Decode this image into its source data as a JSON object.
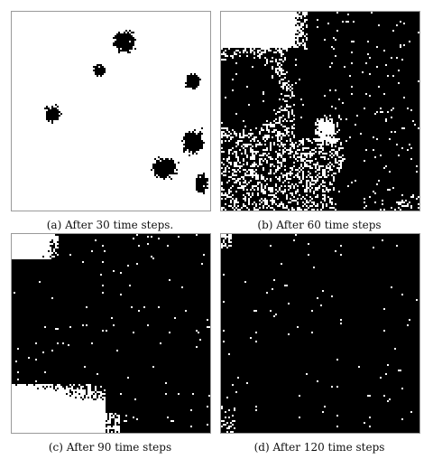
{
  "figure": {
    "panels": [
      {
        "id": "a",
        "caption": "(a) After 30 time steps."
      },
      {
        "id": "b",
        "caption": "(b) After 60 time steps"
      },
      {
        "id": "c",
        "caption": "(c) After 90 time steps"
      },
      {
        "id": "d",
        "caption": "(d) After 120 time steps"
      }
    ]
  },
  "colors": {
    "occupied": "#000000",
    "empty": "#ffffff",
    "border": "#9a9a9a"
  }
}
